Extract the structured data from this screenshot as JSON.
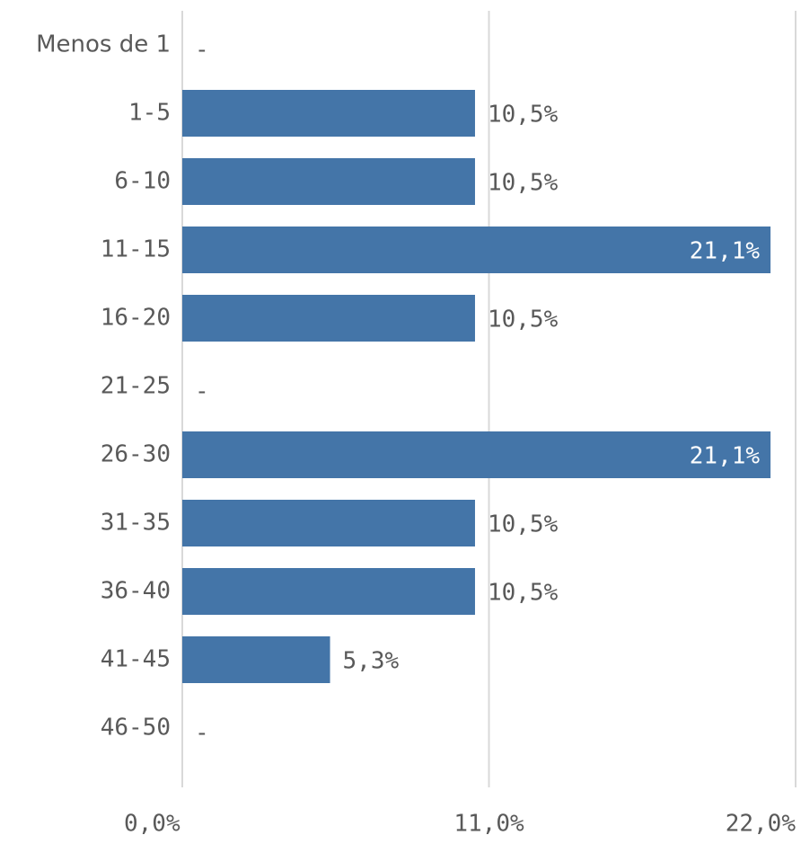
{
  "chart_data": {
    "type": "barh",
    "categories": [
      "Menos de 1",
      "1-5",
      "6-10",
      "11-15",
      "16-20",
      "21-25",
      "26-30",
      "31-35",
      "36-40",
      "41-45",
      "46-50"
    ],
    "values": [
      null,
      10.5,
      10.5,
      21.1,
      10.5,
      null,
      21.1,
      10.5,
      10.5,
      5.3,
      null
    ],
    "value_labels": [
      "-",
      "10,5%",
      "10,5%",
      "21,1%",
      "10,5%",
      "-",
      "21,1%",
      "10,5%",
      "10,5%",
      "5,3%",
      "-"
    ],
    "color": "#4475a8",
    "xlim": [
      0,
      22
    ],
    "xticks": [
      {
        "value": 0,
        "label": "0,0%"
      },
      {
        "value": 11,
        "label": "11,0%"
      },
      {
        "value": 22,
        "label": "22,0%"
      }
    ],
    "grid": true
  }
}
